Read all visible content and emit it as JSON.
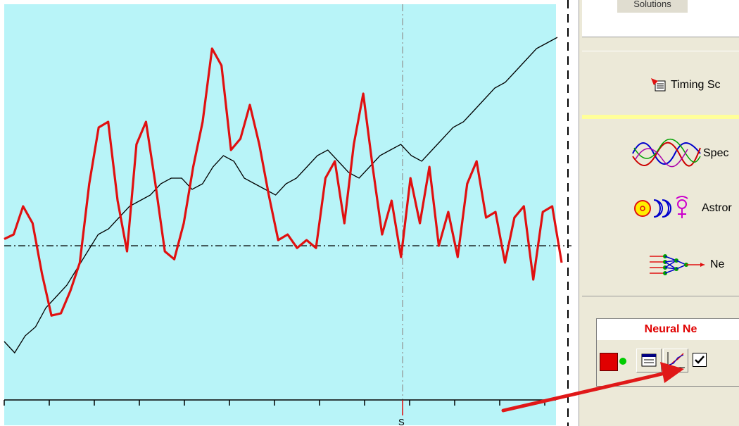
{
  "panel": {
    "solutions_tab": "Solutions",
    "timing_label": "Timing Sc",
    "spectral_label": "Spec",
    "astro_label": "Astror",
    "neural_label": "Ne",
    "nn_title": "Neural Ne"
  },
  "chart": {
    "bottom_label": "S"
  },
  "colors": {
    "chart_bg": "#b8f4f8",
    "forecast_line": "#e01010",
    "price_line": "#000000",
    "arrow": "#e01818",
    "panel_bg": "#ece9d8"
  },
  "chart_data": {
    "type": "line",
    "series": [
      {
        "color": "#e01010",
        "values": [
          0.06,
          0.1,
          0.35,
          0.2,
          -0.25,
          -0.62,
          -0.6,
          -0.4,
          -0.15,
          0.55,
          1.05,
          1.1,
          0.4,
          -0.05,
          0.9,
          1.1,
          0.55,
          -0.05,
          -0.12,
          0.2,
          0.7,
          1.1,
          1.75,
          1.6,
          0.85,
          0.95,
          1.25,
          0.9,
          0.45,
          0.05,
          0.1,
          -0.02,
          0.05,
          -0.02,
          0.6,
          0.75,
          0.2,
          0.9,
          1.35,
          0.7,
          0.1,
          0.4,
          -0.1,
          0.6,
          0.2,
          0.7,
          0.0,
          0.3,
          -0.1,
          0.55,
          0.75,
          0.25,
          0.3,
          -0.15,
          0.25,
          0.35,
          -0.3,
          0.3,
          0.35,
          -0.15
        ]
      },
      {
        "color": "#000000",
        "values": [
          -0.85,
          -0.95,
          -0.8,
          -0.72,
          -0.55,
          -0.45,
          -0.35,
          -0.2,
          -0.05,
          0.1,
          0.15,
          0.25,
          0.35,
          0.4,
          0.45,
          0.55,
          0.6,
          0.6,
          0.5,
          0.55,
          0.7,
          0.8,
          0.75,
          0.6,
          0.55,
          0.5,
          0.45,
          0.55,
          0.6,
          0.7,
          0.8,
          0.85,
          0.75,
          0.65,
          0.6,
          0.7,
          0.8,
          0.85,
          0.9,
          0.8,
          0.75,
          0.85,
          0.95,
          1.05,
          1.1,
          1.2,
          1.3,
          1.4,
          1.45,
          1.55,
          1.65,
          1.75,
          1.8,
          1.85
        ]
      }
    ]
  }
}
